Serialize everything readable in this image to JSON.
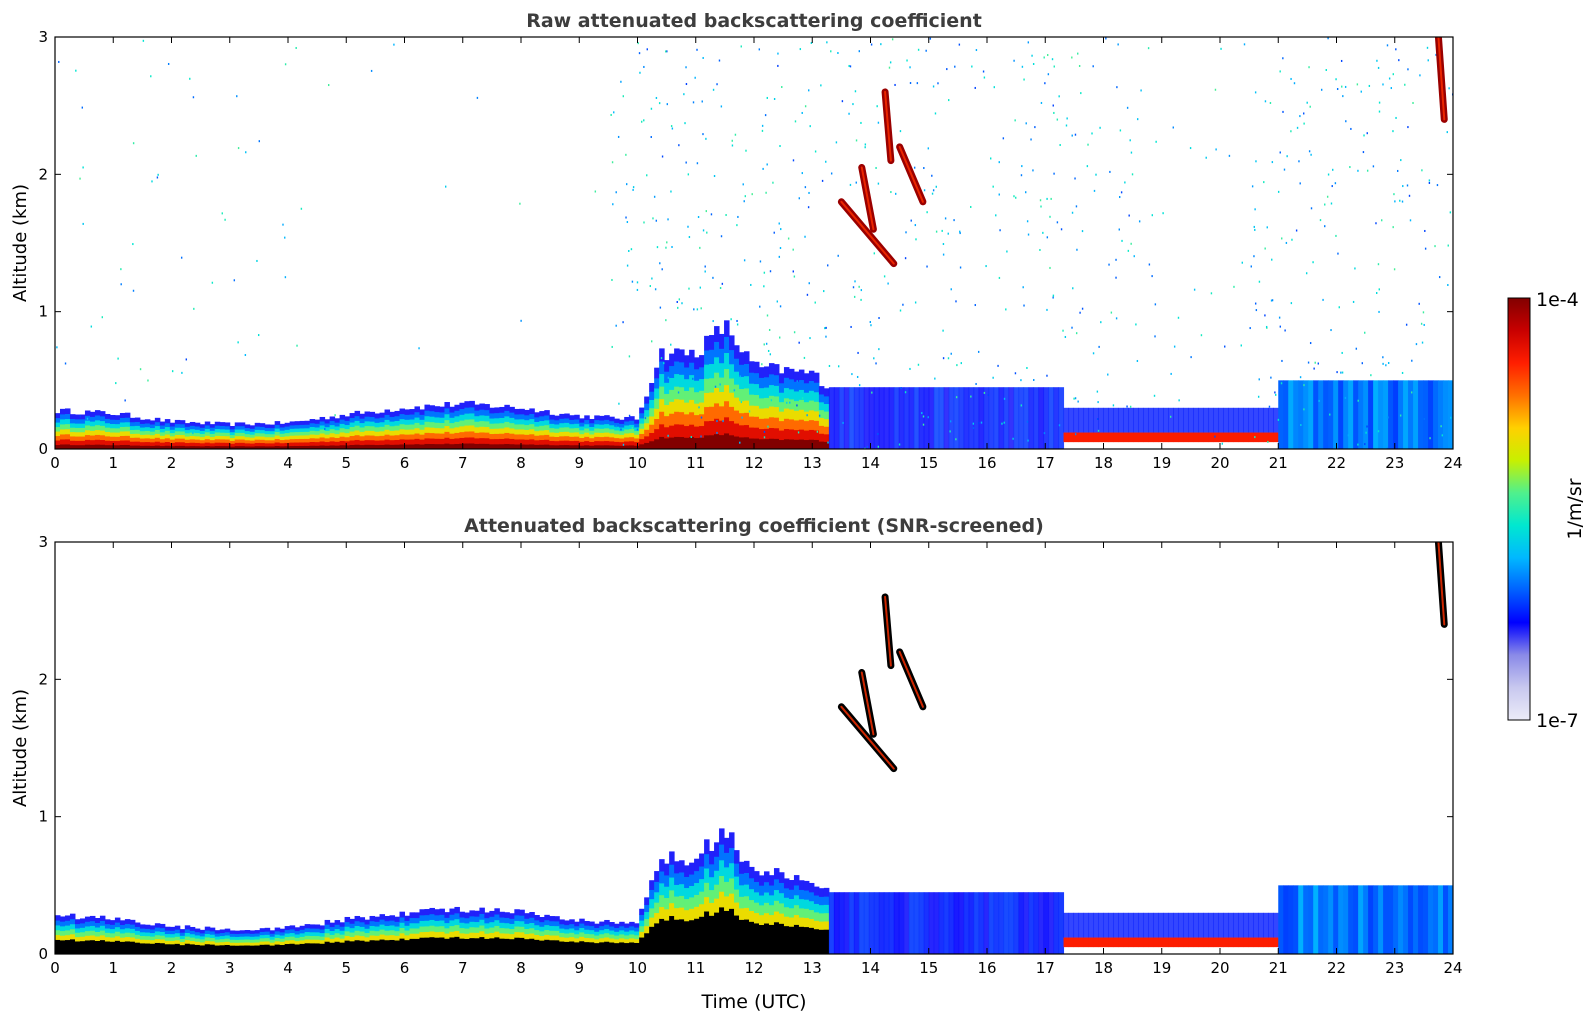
{
  "colors": {
    "background": "#ffffff",
    "axis": "#000000",
    "title": "#3d3d3d",
    "colormap_stops": [
      "#ececf8",
      "#c8c8ef",
      "#8a8ae8",
      "#0000ff",
      "#0060ff",
      "#00b8ff",
      "#00e8d0",
      "#50f08c",
      "#c8f000",
      "#ffd000",
      "#ff7000",
      "#ff1e00",
      "#c80000",
      "#820000"
    ]
  },
  "chart_data": [
    {
      "type": "heatmap",
      "title": "Raw attenuated backscattering coefficient",
      "xlabel": "",
      "ylabel": "Altitude (km)",
      "xlim": [
        0,
        24
      ],
      "ylim": [
        0,
        3
      ],
      "xticks": [
        "0",
        "1",
        "2",
        "3",
        "4",
        "5",
        "6",
        "7",
        "8",
        "9",
        "10",
        "11",
        "12",
        "13",
        "14",
        "15",
        "16",
        "17",
        "18",
        "19",
        "20",
        "21",
        "22",
        "23",
        "24"
      ],
      "yticks": [
        "0",
        "1",
        "2",
        "3"
      ],
      "features": {
        "boundary_layer_top_km": [
          [
            0,
            0.28
          ],
          [
            1,
            0.26
          ],
          [
            2,
            0.2
          ],
          [
            3,
            0.18
          ],
          [
            4,
            0.19
          ],
          [
            5,
            0.25
          ],
          [
            6,
            0.3
          ],
          [
            7,
            0.33
          ],
          [
            8,
            0.3
          ],
          [
            9,
            0.24
          ],
          [
            10,
            0.22
          ],
          [
            10.4,
            0.7
          ],
          [
            11,
            0.7
          ],
          [
            11.5,
            0.9
          ],
          [
            12,
            0.6
          ],
          [
            13,
            0.55
          ],
          [
            13.3,
            0.45
          ]
        ],
        "cloud_segments": [
          {
            "t_start": 13.5,
            "alt_start": 1.8,
            "t_end": 14.4,
            "alt_end": 1.35
          },
          {
            "t_start": 14.5,
            "alt_start": 2.2,
            "t_end": 14.9,
            "alt_end": 1.8
          },
          {
            "t_start": 13.85,
            "alt_start": 2.05,
            "t_end": 14.05,
            "alt_end": 1.6
          },
          {
            "t_start": 14.25,
            "alt_start": 2.6,
            "t_end": 14.35,
            "alt_end": 2.1
          },
          {
            "t_start": 23.75,
            "alt_start": 3.0,
            "t_end": 23.85,
            "alt_end": 2.4
          }
        ]
      }
    },
    {
      "type": "heatmap",
      "title": "Attenuated backscattering coefficient (SNR-screened)",
      "xlabel": "Time (UTC)",
      "ylabel": "Altitude (km)",
      "xlim": [
        0,
        24
      ],
      "ylim": [
        0,
        3
      ],
      "xticks": [
        "0",
        "1",
        "2",
        "3",
        "4",
        "5",
        "6",
        "7",
        "8",
        "9",
        "10",
        "11",
        "12",
        "13",
        "14",
        "15",
        "16",
        "17",
        "18",
        "19",
        "20",
        "21",
        "22",
        "23",
        "24"
      ],
      "yticks": [
        "0",
        "1",
        "2",
        "3"
      ]
    }
  ],
  "colorbar": {
    "label": "1/m/sr",
    "max_label": "1e-4",
    "min_label": "1e-7"
  }
}
